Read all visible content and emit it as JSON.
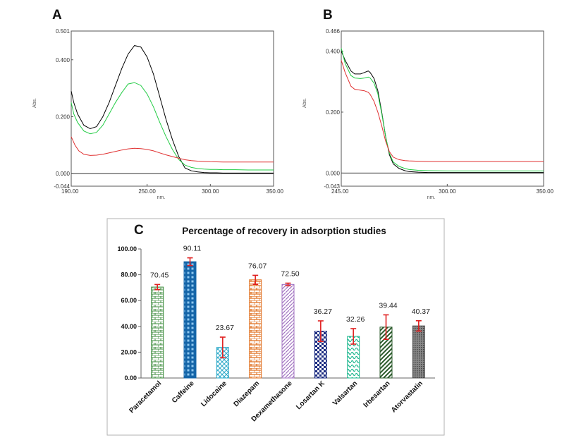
{
  "chart_data": [
    {
      "panel": "A",
      "type": "line",
      "xlabel": "nm.",
      "ylabel": "Abs.",
      "xlim": [
        190,
        350
      ],
      "ylim": [
        -0.044,
        0.501
      ],
      "xticks": [
        "190.00",
        "250.00",
        "300.00",
        "350.00"
      ],
      "yticks": [
        "0.501",
        "0.400",
        "0.200",
        "0.000",
        "-0.044"
      ],
      "series": [
        {
          "color": "#000000",
          "x": [
            190,
            192,
            195,
            200,
            205,
            210,
            215,
            220,
            225,
            230,
            235,
            240,
            245,
            250,
            255,
            260,
            265,
            270,
            275,
            280,
            285,
            290,
            295,
            300,
            305,
            310,
            320,
            330,
            340,
            350
          ],
          "y": [
            0.29,
            0.25,
            0.21,
            0.17,
            0.158,
            0.165,
            0.2,
            0.25,
            0.31,
            0.37,
            0.42,
            0.45,
            0.445,
            0.41,
            0.35,
            0.27,
            0.19,
            0.12,
            0.06,
            0.02,
            0.01,
            0.006,
            0.004,
            0.003,
            0.003,
            0.002,
            0.002,
            0.002,
            0.002,
            0.002
          ]
        },
        {
          "color": "#22cc44",
          "x": [
            190,
            192,
            195,
            200,
            205,
            210,
            215,
            220,
            225,
            230,
            235,
            240,
            245,
            250,
            255,
            260,
            265,
            270,
            275,
            280,
            285,
            290,
            295,
            300,
            305,
            310,
            320,
            330,
            340,
            350
          ],
          "y": [
            0.25,
            0.21,
            0.18,
            0.15,
            0.14,
            0.145,
            0.17,
            0.21,
            0.25,
            0.285,
            0.315,
            0.32,
            0.31,
            0.28,
            0.235,
            0.18,
            0.13,
            0.085,
            0.05,
            0.03,
            0.022,
            0.018,
            0.016,
            0.015,
            0.015,
            0.014,
            0.014,
            0.013,
            0.013,
            0.013
          ]
        },
        {
          "color": "#e03030",
          "x": [
            190,
            193,
            196,
            200,
            205,
            210,
            215,
            220,
            225,
            230,
            235,
            240,
            245,
            250,
            255,
            260,
            265,
            270,
            275,
            280,
            285,
            290,
            300,
            310,
            320,
            330,
            340,
            350
          ],
          "y": [
            0.13,
            0.1,
            0.08,
            0.068,
            0.064,
            0.065,
            0.068,
            0.073,
            0.078,
            0.083,
            0.087,
            0.089,
            0.088,
            0.085,
            0.08,
            0.073,
            0.066,
            0.06,
            0.054,
            0.049,
            0.046,
            0.044,
            0.042,
            0.041,
            0.041,
            0.041,
            0.041,
            0.041
          ]
        }
      ]
    },
    {
      "panel": "B",
      "type": "line",
      "xlabel": "nm.",
      "ylabel": "Abs.",
      "xlim": [
        245,
        350
      ],
      "ylim": [
        -0.043,
        0.466
      ],
      "xticks": [
        "245.00",
        "300.00",
        "350.00"
      ],
      "yticks": [
        "0.466",
        "0.400",
        "0.200",
        "0.000",
        "-0.043"
      ],
      "series": [
        {
          "color": "#000000",
          "x": [
            245,
            247,
            250,
            252,
            255,
            257,
            259,
            260,
            262,
            264,
            266,
            268,
            270,
            272,
            275,
            278,
            280,
            285,
            290,
            300,
            310,
            320,
            330,
            340,
            350
          ],
          "y": [
            0.4,
            0.37,
            0.335,
            0.325,
            0.325,
            0.33,
            0.335,
            0.33,
            0.31,
            0.27,
            0.2,
            0.12,
            0.06,
            0.03,
            0.015,
            0.008,
            0.005,
            0.003,
            0.002,
            0.002,
            0.002,
            0.002,
            0.002,
            0.002,
            0.002
          ]
        },
        {
          "color": "#22cc44",
          "x": [
            245,
            247,
            250,
            252,
            255,
            257,
            259,
            260,
            262,
            264,
            266,
            268,
            270,
            272,
            275,
            278,
            280,
            285,
            290,
            300,
            310,
            320,
            330,
            340,
            350
          ],
          "y": [
            0.41,
            0.36,
            0.32,
            0.312,
            0.31,
            0.312,
            0.315,
            0.312,
            0.295,
            0.26,
            0.195,
            0.12,
            0.065,
            0.036,
            0.022,
            0.015,
            0.012,
            0.009,
            0.008,
            0.007,
            0.007,
            0.007,
            0.007,
            0.007,
            0.007
          ]
        },
        {
          "color": "#e03030",
          "x": [
            245,
            247,
            250,
            252,
            255,
            257,
            259,
            260,
            262,
            264,
            266,
            268,
            270,
            272,
            275,
            278,
            280,
            285,
            290,
            300,
            310,
            320,
            330,
            340,
            350
          ],
          "y": [
            0.37,
            0.33,
            0.285,
            0.275,
            0.272,
            0.27,
            0.265,
            0.258,
            0.235,
            0.2,
            0.155,
            0.105,
            0.07,
            0.052,
            0.044,
            0.041,
            0.04,
            0.039,
            0.038,
            0.038,
            0.038,
            0.038,
            0.038,
            0.038,
            0.038
          ]
        }
      ]
    },
    {
      "panel": "C",
      "type": "bar",
      "title": "Percentage of recovery in adsorption studies",
      "categories": [
        "Paracetamol",
        "Caffeine",
        "Lidocaine",
        "Diazepam",
        "Dexamethasone",
        "Losartan K",
        "Valsartan",
        "Irbesartan",
        "Atorvastatin"
      ],
      "values": [
        70.45,
        90.11,
        23.67,
        76.07,
        72.5,
        36.27,
        32.26,
        39.44,
        40.37
      ],
      "value_labels": [
        "70.45",
        "90.11",
        "23.67",
        "76.07",
        "72.50",
        "36.27",
        "32.26",
        "39.44",
        "40.37"
      ],
      "errors": [
        2.0,
        3.0,
        8.0,
        3.5,
        1.0,
        8.0,
        6.0,
        9.5,
        4.0
      ],
      "ylim": [
        0,
        100
      ],
      "yticks": [
        "0.00",
        "20.00",
        "40.00",
        "60.00",
        "80.00",
        "100.00"
      ],
      "colors": [
        "#3a8a3a",
        "#1565a8",
        "#2aa8c8",
        "#e07020",
        "#a070c0",
        "#1a2a80",
        "#20b890",
        "#2a5a2a",
        "#555555"
      ]
    }
  ]
}
